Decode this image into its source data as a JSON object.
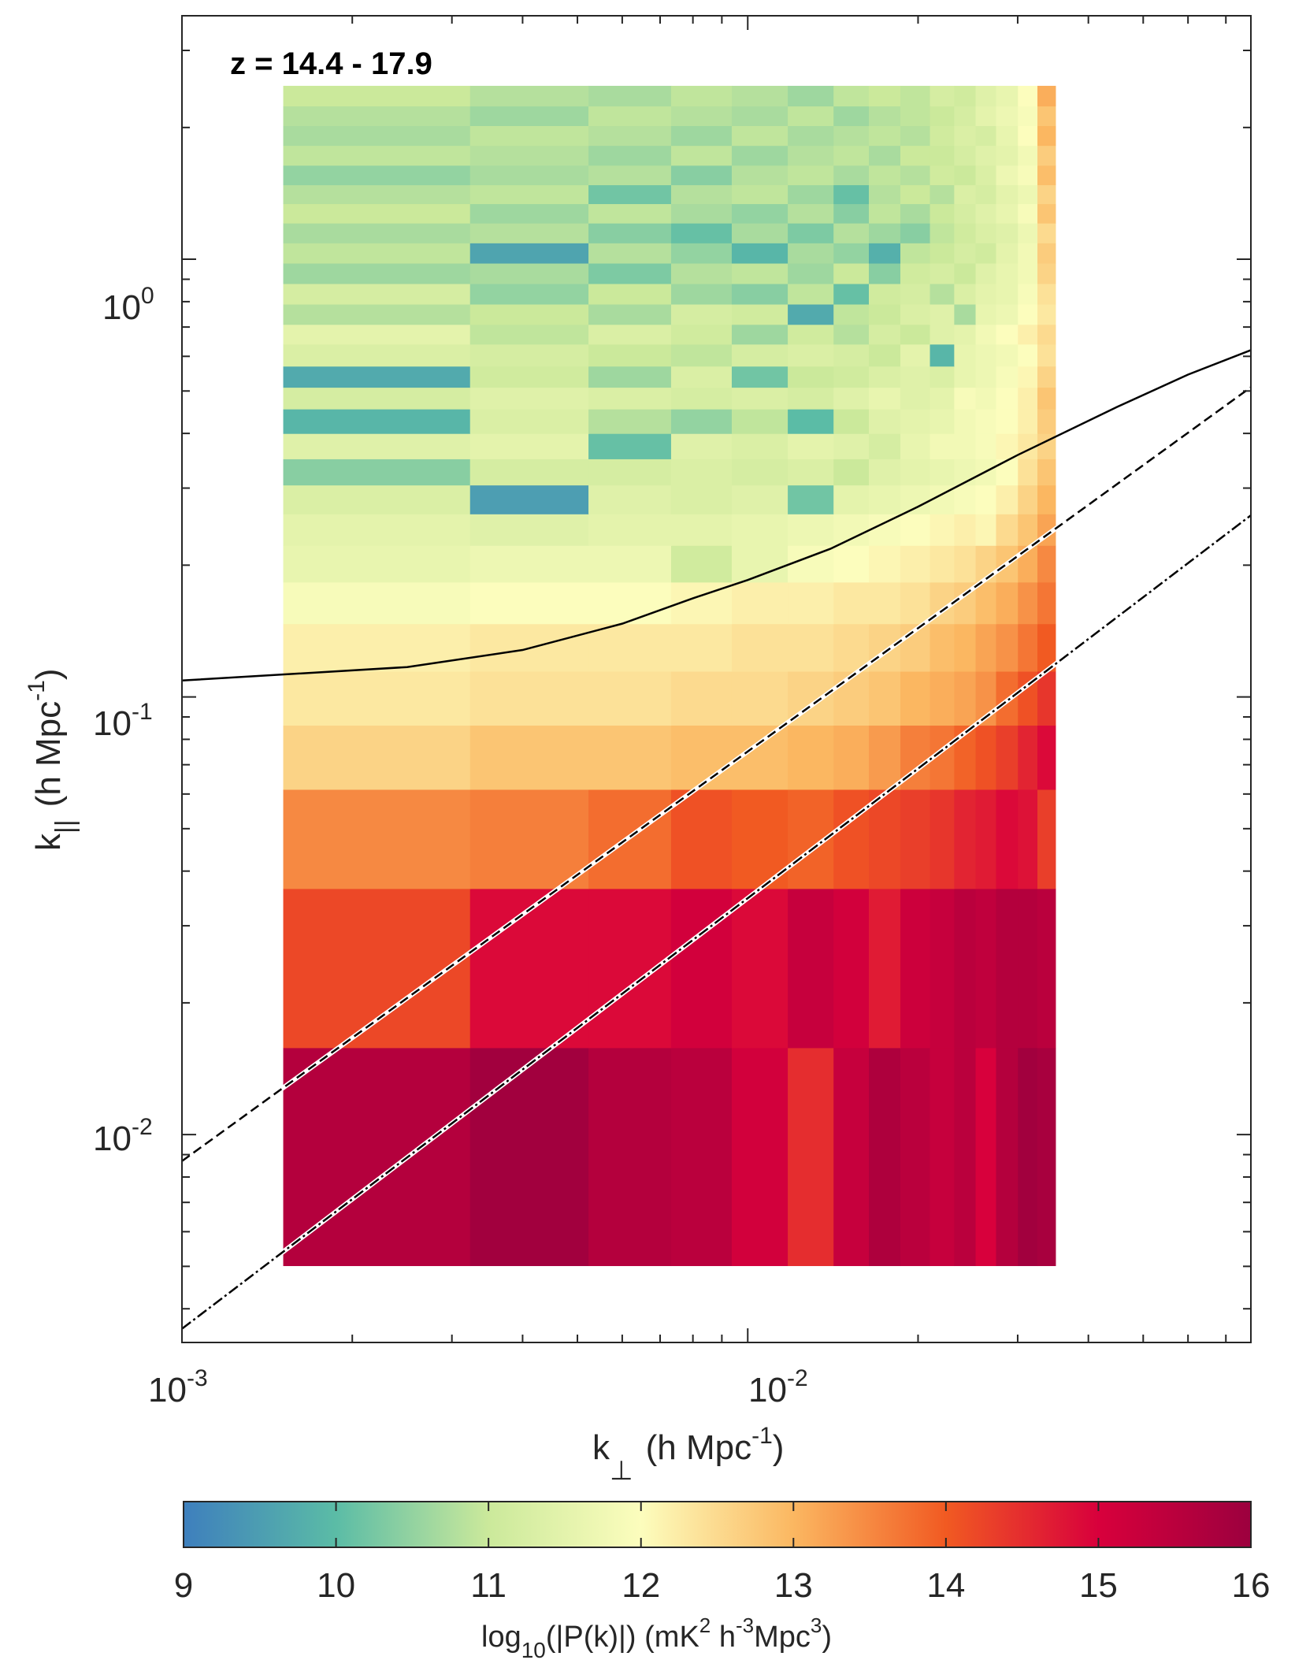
{
  "chart_data": {
    "type": "heatmap",
    "title": "",
    "annotation": "z = 14.4 - 17.9",
    "x_axis": {
      "scale": "log",
      "range": [
        0.001,
        0.0775
      ],
      "label_main": "k",
      "label_sub": "⊥",
      "label_unit": "(h Mpc",
      "label_unit_sup": "-1",
      "label_close": ")",
      "ticks": [
        {
          "value": 0.001,
          "base": "10",
          "exp": "-3"
        },
        {
          "value": 0.01,
          "base": "10",
          "exp": "-2"
        }
      ]
    },
    "y_axis": {
      "scale": "log",
      "range": [
        0.00335,
        3.6
      ],
      "label_main": "k",
      "label_sub": "||",
      "label_unit": "(h Mpc",
      "label_unit_sup": "-1",
      "label_close": ")",
      "ticks": [
        {
          "value": 0.01,
          "base": "10",
          "exp": "-2"
        },
        {
          "value": 0.1,
          "base": "10",
          "exp": "-1"
        },
        {
          "value": 1,
          "base": "10",
          "exp": "0"
        }
      ]
    },
    "colorbar": {
      "range": [
        9,
        16
      ],
      "ticks": [
        "9",
        "10",
        "11",
        "12",
        "13",
        "14",
        "15",
        "16"
      ],
      "label_main": "log",
      "label_sub": "10",
      "label_mid": "(|P(k)|)  (mK",
      "label_sup1": "2",
      "label_mid2": " h",
      "label_sup2": "-3",
      "label_mid3": "Mpc",
      "label_sup3": "3",
      "label_close": ")",
      "colormap": [
        "#3e7fbd",
        "#5bbca6",
        "#cbe99b",
        "#fcfdbd",
        "#fbb761",
        "#f15a22",
        "#d8003c",
        "#9c003e"
      ]
    },
    "heatmap": {
      "kperp_edges": [
        0.00151,
        0.00323,
        0.00523,
        0.00732,
        0.00937,
        0.01177,
        0.01418,
        0.01637,
        0.01861,
        0.02099,
        0.02317,
        0.02528,
        0.02747,
        0.03003,
        0.03251,
        0.03498
      ],
      "kpar_edges": [
        0.00502,
        0.0158,
        0.0365,
        0.0615,
        0.0862,
        0.1145,
        0.147,
        0.183,
        0.222,
        0.262,
        0.305,
        0.35,
        0.4,
        0.455,
        0.51,
        0.57,
        0.64,
        0.71,
        0.79,
        0.88,
        0.98,
        1.09,
        1.21,
        1.34,
        1.48,
        1.64,
        1.82,
        2.02,
        2.24,
        2.49
      ],
      "values": [
        [
          15.6,
          15.9,
          15.6,
          15.5,
          15.1,
          14.5,
          15.3,
          15.7,
          15.5,
          15.3,
          15.5,
          15.0,
          15.6,
          15.9,
          15.8
        ],
        [
          14.2,
          14.9,
          14.9,
          15.1,
          14.9,
          15.3,
          15.1,
          14.7,
          15.2,
          15.3,
          15.5,
          15.4,
          15.6,
          15.6,
          15.5
        ],
        [
          13.5,
          13.6,
          13.8,
          14.1,
          14.0,
          13.9,
          14.1,
          14.2,
          14.3,
          14.4,
          14.6,
          14.7,
          14.9,
          14.8,
          14.3
        ],
        [
          12.6,
          12.8,
          12.8,
          12.9,
          12.9,
          13.0,
          13.1,
          13.3,
          13.6,
          13.7,
          13.9,
          14.1,
          14.3,
          14.6,
          14.9
        ],
        [
          12.3,
          12.4,
          12.4,
          12.5,
          12.5,
          12.6,
          12.7,
          12.8,
          13.0,
          13.1,
          13.2,
          13.4,
          13.8,
          14.1,
          14.4
        ],
        [
          12.2,
          12.3,
          12.3,
          12.3,
          12.4,
          12.4,
          12.5,
          12.6,
          12.7,
          12.9,
          13.0,
          13.2,
          13.4,
          13.7,
          14.0
        ],
        [
          11.9,
          12.0,
          12.0,
          12.1,
          12.2,
          12.2,
          12.3,
          12.3,
          12.4,
          12.6,
          12.7,
          12.9,
          13.1,
          13.4,
          13.7
        ],
        [
          11.6,
          11.7,
          11.7,
          11.1,
          11.6,
          11.9,
          12.0,
          12.1,
          12.2,
          12.3,
          12.4,
          12.6,
          12.8,
          13.1,
          13.5
        ],
        [
          11.5,
          11.4,
          11.5,
          11.5,
          11.6,
          11.7,
          11.8,
          11.9,
          12.0,
          12.1,
          12.2,
          12.1,
          12.5,
          12.8,
          13.2
        ],
        [
          11.3,
          9.5,
          11.4,
          11.3,
          11.4,
          10.2,
          11.5,
          11.6,
          11.7,
          11.8,
          11.9,
          12.0,
          12.2,
          12.6,
          13.0
        ],
        [
          10.4,
          11.2,
          11.2,
          11.3,
          11.2,
          11.3,
          11.0,
          11.4,
          11.5,
          11.6,
          11.7,
          11.8,
          12.0,
          12.4,
          12.8
        ],
        [
          11.4,
          11.5,
          10.1,
          11.4,
          11.3,
          11.5,
          11.4,
          11.2,
          11.6,
          11.8,
          11.8,
          11.9,
          12.1,
          12.3,
          12.6
        ],
        [
          9.9,
          11.3,
          10.8,
          10.5,
          10.9,
          10.0,
          11.0,
          11.4,
          11.5,
          11.6,
          11.8,
          11.9,
          12.0,
          12.2,
          12.7
        ],
        [
          11.2,
          11.4,
          11.3,
          11.2,
          11.3,
          11.2,
          11.4,
          11.6,
          11.4,
          11.5,
          11.9,
          11.8,
          12.0,
          12.2,
          12.8
        ],
        [
          9.7,
          11.1,
          10.6,
          11.3,
          10.2,
          11.0,
          11.1,
          11.3,
          11.4,
          11.3,
          11.6,
          11.7,
          11.9,
          12.1,
          12.6
        ],
        [
          11.3,
          11.2,
          11.0,
          10.9,
          11.2,
          11.3,
          11.2,
          11.0,
          11.5,
          9.9,
          11.6,
          11.7,
          11.8,
          12.0,
          12.4
        ],
        [
          11.5,
          10.9,
          11.3,
          11.1,
          10.6,
          11.1,
          10.8,
          11.2,
          11.0,
          11.4,
          11.5,
          11.8,
          12.0,
          12.2,
          12.5
        ],
        [
          10.8,
          11.0,
          10.7,
          11.2,
          11.1,
          9.7,
          10.9,
          11.0,
          11.3,
          11.4,
          10.7,
          11.6,
          11.7,
          12.0,
          12.3
        ],
        [
          11.2,
          10.5,
          11.0,
          10.6,
          10.4,
          10.9,
          10.1,
          11.1,
          11.2,
          10.8,
          11.3,
          11.5,
          11.6,
          11.9,
          12.4
        ],
        [
          10.6,
          10.7,
          10.3,
          10.8,
          10.9,
          10.6,
          11.0,
          10.4,
          11.1,
          11.2,
          11.0,
          11.4,
          11.6,
          11.8,
          12.6
        ],
        [
          10.9,
          9.6,
          10.8,
          10.5,
          9.9,
          10.7,
          10.5,
          9.8,
          10.9,
          11.0,
          11.2,
          11.1,
          11.5,
          11.8,
          12.7
        ],
        [
          10.7,
          10.8,
          10.4,
          10.1,
          10.7,
          10.3,
          10.8,
          10.6,
          10.4,
          10.9,
          11.1,
          11.3,
          11.4,
          11.7,
          12.5
        ],
        [
          11.0,
          10.6,
          10.9,
          10.7,
          10.5,
          10.8,
          10.4,
          10.9,
          10.7,
          11.0,
          11.2,
          11.4,
          11.6,
          11.9,
          12.8
        ],
        [
          10.8,
          10.9,
          10.2,
          10.8,
          10.9,
          10.6,
          10.1,
          10.8,
          11.0,
          10.8,
          11.3,
          11.2,
          11.5,
          11.7,
          12.6
        ],
        [
          10.5,
          10.7,
          10.8,
          10.4,
          10.8,
          10.9,
          10.7,
          10.9,
          10.8,
          11.1,
          11.0,
          11.3,
          11.7,
          11.9,
          12.9
        ],
        [
          10.9,
          10.8,
          10.6,
          10.9,
          10.6,
          10.8,
          10.9,
          10.7,
          11.0,
          11.0,
          11.2,
          11.4,
          11.5,
          11.8,
          12.7
        ],
        [
          10.7,
          10.9,
          10.8,
          10.6,
          10.9,
          10.7,
          10.8,
          10.9,
          10.8,
          11.1,
          11.3,
          11.2,
          11.6,
          12.0,
          13.0
        ],
        [
          10.8,
          10.6,
          10.9,
          10.8,
          10.7,
          10.9,
          10.6,
          10.8,
          10.9,
          11.0,
          11.2,
          11.5,
          11.7,
          11.9,
          12.8
        ],
        [
          11.0,
          10.8,
          10.7,
          10.9,
          10.8,
          10.6,
          10.9,
          11.0,
          10.9,
          11.2,
          11.1,
          11.4,
          11.6,
          12.0,
          13.1
        ]
      ]
    },
    "lines": [
      {
        "name": "horizon-curve",
        "style": "solid",
        "points": [
          [
            0.001,
            0.109
          ],
          [
            0.0025,
            0.117
          ],
          [
            0.004,
            0.128
          ],
          [
            0.006,
            0.147
          ],
          [
            0.008,
            0.168
          ],
          [
            0.01,
            0.185
          ],
          [
            0.014,
            0.218
          ],
          [
            0.02,
            0.272
          ],
          [
            0.03,
            0.357
          ],
          [
            0.045,
            0.46
          ],
          [
            0.06,
            0.545
          ],
          [
            0.0775,
            0.62
          ]
        ]
      },
      {
        "name": "dashed-wedge-line",
        "style": "dashed",
        "points": [
          [
            0.001,
            0.0087
          ],
          [
            0.0775,
            0.51
          ]
        ]
      },
      {
        "name": "dashdot-wedge-line",
        "style": "dashdot",
        "points": [
          [
            0.001,
            0.0036
          ],
          [
            0.0775,
            0.26
          ]
        ]
      }
    ]
  }
}
